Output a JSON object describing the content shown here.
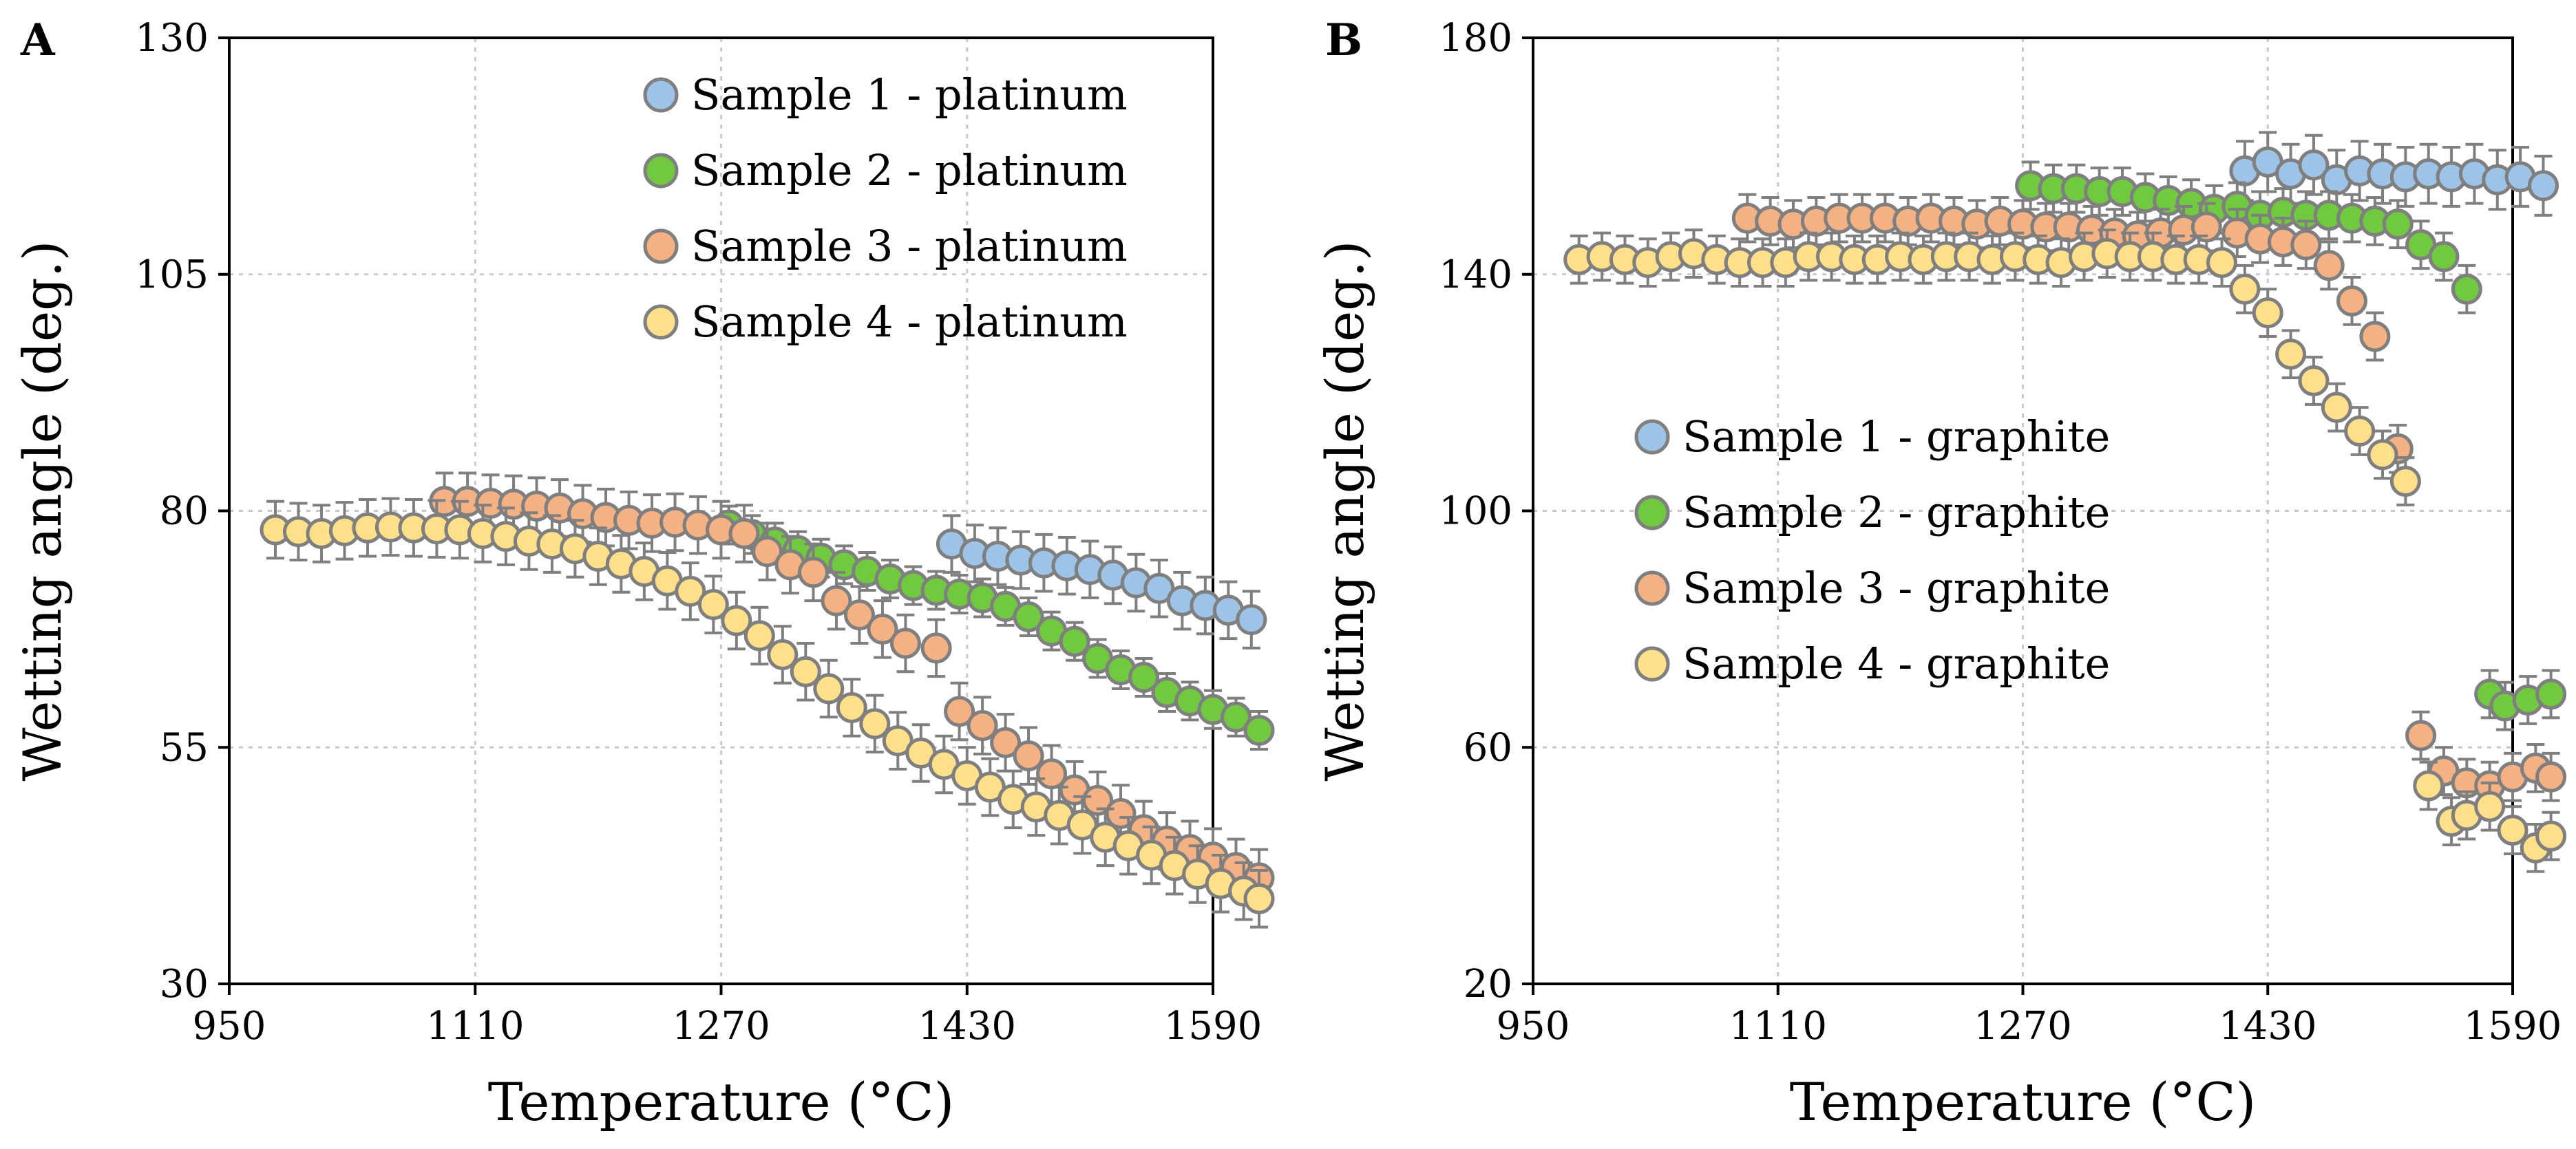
{
  "colors": {
    "s1": "#9dc3e6",
    "s2": "#70c93f",
    "s3": "#f4b183",
    "s4": "#ffe08a",
    "edge": "#7f7f7f"
  },
  "chart_data": [
    {
      "panel": "A",
      "type": "scatter",
      "xlabel": "Temperature (°C)",
      "ylabel": "Wetting angle (deg.)",
      "xlim": [
        950,
        1590
      ],
      "ylim": [
        30,
        130
      ],
      "xticks": [
        950,
        1110,
        1270,
        1430,
        1590
      ],
      "yticks": [
        30,
        55,
        80,
        105,
        130
      ],
      "legend_position": "top-right",
      "series": [
        {
          "name": "Sample 1 - platinum",
          "color": "s1",
          "err": 3,
          "x": [
            1420,
            1435,
            1450,
            1465,
            1480,
            1495,
            1510,
            1525,
            1540,
            1555,
            1570,
            1585,
            1600,
            1615
          ],
          "y": [
            76.5,
            75.5,
            75.2,
            74.8,
            74.5,
            74.2,
            73.8,
            73.2,
            72.4,
            71.8,
            70.5,
            70.0,
            69.5,
            68.5
          ]
        },
        {
          "name": "Sample 2 - platinum",
          "color": "s2",
          "err": 2,
          "x": [
            1275,
            1290,
            1305,
            1320,
            1335,
            1350,
            1365,
            1380,
            1395,
            1410,
            1425,
            1440,
            1455,
            1470,
            1485,
            1500,
            1515,
            1530,
            1545,
            1560,
            1575,
            1590,
            1605,
            1620
          ],
          "y": [
            78.5,
            77.5,
            76.7,
            75.8,
            75.0,
            74.3,
            73.6,
            72.8,
            72.1,
            71.6,
            71.2,
            70.8,
            69.9,
            68.8,
            67.3,
            66.2,
            64.4,
            63.2,
            62.4,
            60.8,
            59.9,
            59.0,
            58.2,
            56.8
          ]
        },
        {
          "name": "Sample 3 - platinum",
          "color": "s3",
          "err": 3,
          "x": [
            1090,
            1105,
            1120,
            1135,
            1150,
            1165,
            1180,
            1195,
            1210,
            1225,
            1240,
            1255,
            1270,
            1285,
            1300,
            1315,
            1330,
            1345,
            1360,
            1375,
            1390,
            1410,
            1425,
            1440,
            1455,
            1470,
            1485,
            1500,
            1515,
            1530,
            1545,
            1560,
            1575,
            1590,
            1605,
            1620
          ],
          "y": [
            81.0,
            81.0,
            80.8,
            80.7,
            80.5,
            80.3,
            79.7,
            79.3,
            79.0,
            78.7,
            78.8,
            78.5,
            78.0,
            77.6,
            75.7,
            74.3,
            73.5,
            70.5,
            69.0,
            67.5,
            66.0,
            65.5,
            58.8,
            57.3,
            55.5,
            54.1,
            52.2,
            50.5,
            49.4,
            48.0,
            46.3,
            45.1,
            44.2,
            43.4,
            42.3,
            41.2
          ]
        },
        {
          "name": "Sample 4 - platinum",
          "color": "s4",
          "err": 3,
          "x": [
            980,
            995,
            1010,
            1025,
            1040,
            1055,
            1070,
            1085,
            1100,
            1115,
            1130,
            1145,
            1160,
            1175,
            1190,
            1205,
            1220,
            1235,
            1250,
            1265,
            1280,
            1295,
            1310,
            1325,
            1340,
            1355,
            1370,
            1385,
            1400,
            1415,
            1430,
            1445,
            1460,
            1475,
            1490,
            1505,
            1520,
            1535,
            1550,
            1565,
            1580,
            1595,
            1610,
            1620
          ],
          "y": [
            78.0,
            77.8,
            77.6,
            77.9,
            78.2,
            78.3,
            78.2,
            78.1,
            78.0,
            77.6,
            77.3,
            76.8,
            76.5,
            76.0,
            75.2,
            74.4,
            73.6,
            72.6,
            71.5,
            70.1,
            68.4,
            66.8,
            64.8,
            63.0,
            61.2,
            59.2,
            57.5,
            55.7,
            54.4,
            53.2,
            52.0,
            50.8,
            49.5,
            48.7,
            47.8,
            46.8,
            45.5,
            44.6,
            43.6,
            42.5,
            41.6,
            40.6,
            39.8,
            39.0
          ]
        }
      ]
    },
    {
      "panel": "B",
      "type": "scatter",
      "xlabel": "Temperature (°C)",
      "ylabel": "Wetting angle (deg.)",
      "xlim": [
        950,
        1590
      ],
      "ylim": [
        20,
        180
      ],
      "xticks": [
        950,
        1110,
        1270,
        1430,
        1590
      ],
      "yticks": [
        20,
        60,
        100,
        140,
        180
      ],
      "legend_position": "center-left",
      "series": [
        {
          "name": "Sample 1 - graphite",
          "color": "s1",
          "err": 5,
          "x": [
            1415,
            1430,
            1445,
            1460,
            1475,
            1490,
            1505,
            1520,
            1535,
            1550,
            1565,
            1580,
            1595,
            1610
          ],
          "y": [
            157.5,
            159.0,
            157.0,
            158.5,
            156.0,
            157.5,
            157.0,
            156.5,
            157.0,
            156.5,
            157.0,
            156.0,
            156.5,
            155.0
          ]
        },
        {
          "name": "Sample 2 - graphite",
          "color": "s2",
          "err": 4,
          "x": [
            1275,
            1290,
            1305,
            1320,
            1335,
            1350,
            1365,
            1380,
            1395,
            1410,
            1425,
            1440,
            1455,
            1470,
            1485,
            1500,
            1515,
            1530,
            1545,
            1560,
            1575,
            1585,
            1600,
            1615
          ],
          "y": [
            155.0,
            154.5,
            154.5,
            154.0,
            154.0,
            153.0,
            152.5,
            152.0,
            151.0,
            151.5,
            150.0,
            150.5,
            150.0,
            150.0,
            149.5,
            149.0,
            148.5,
            145.0,
            143.0,
            137.5,
            69.0,
            67.0,
            68.0,
            69.0
          ]
        },
        {
          "name": "Sample 3 - graphite",
          "color": "s3",
          "err": 4,
          "x": [
            1090,
            1105,
            1120,
            1135,
            1150,
            1165,
            1180,
            1195,
            1210,
            1225,
            1240,
            1255,
            1270,
            1285,
            1300,
            1315,
            1330,
            1345,
            1360,
            1375,
            1390,
            1410,
            1425,
            1440,
            1455,
            1470,
            1485,
            1500,
            1515,
            1530,
            1545,
            1560,
            1575,
            1590,
            1605,
            1615
          ],
          "y": [
            149.5,
            149.0,
            148.5,
            149.0,
            149.5,
            149.5,
            149.5,
            149.0,
            149.5,
            149.0,
            148.5,
            149.0,
            148.5,
            148.0,
            148.0,
            147.5,
            147.0,
            146.5,
            147.0,
            147.5,
            148.0,
            147.0,
            146.0,
            145.5,
            145.0,
            141.5,
            135.5,
            129.5,
            110.5,
            62.0,
            56.0,
            54.0,
            53.5,
            55.0,
            56.5,
            55.0
          ]
        },
        {
          "name": "Sample 4 - graphite",
          "color": "s4",
          "err": 4,
          "x": [
            980,
            995,
            1010,
            1025,
            1040,
            1055,
            1070,
            1085,
            1100,
            1115,
            1130,
            1145,
            1160,
            1175,
            1190,
            1205,
            1220,
            1235,
            1250,
            1265,
            1280,
            1295,
            1310,
            1325,
            1340,
            1355,
            1370,
            1385,
            1400,
            1415,
            1430,
            1445,
            1460,
            1475,
            1490,
            1505,
            1520,
            1535,
            1550,
            1560,
            1575,
            1590,
            1605,
            1615
          ],
          "y": [
            142.5,
            143.0,
            142.5,
            142.0,
            143.0,
            143.5,
            142.5,
            142.0,
            142.0,
            142.0,
            143.0,
            143.0,
            142.5,
            142.5,
            143.0,
            142.5,
            143.0,
            143.0,
            142.5,
            143.0,
            142.5,
            142.0,
            143.0,
            143.5,
            143.0,
            143.0,
            142.5,
            142.5,
            142.0,
            137.5,
            133.5,
            126.5,
            122.0,
            117.5,
            113.5,
            109.5,
            105.0,
            53.5,
            47.5,
            48.5,
            50.0,
            46.0,
            43.0,
            45.0
          ]
        }
      ]
    }
  ]
}
